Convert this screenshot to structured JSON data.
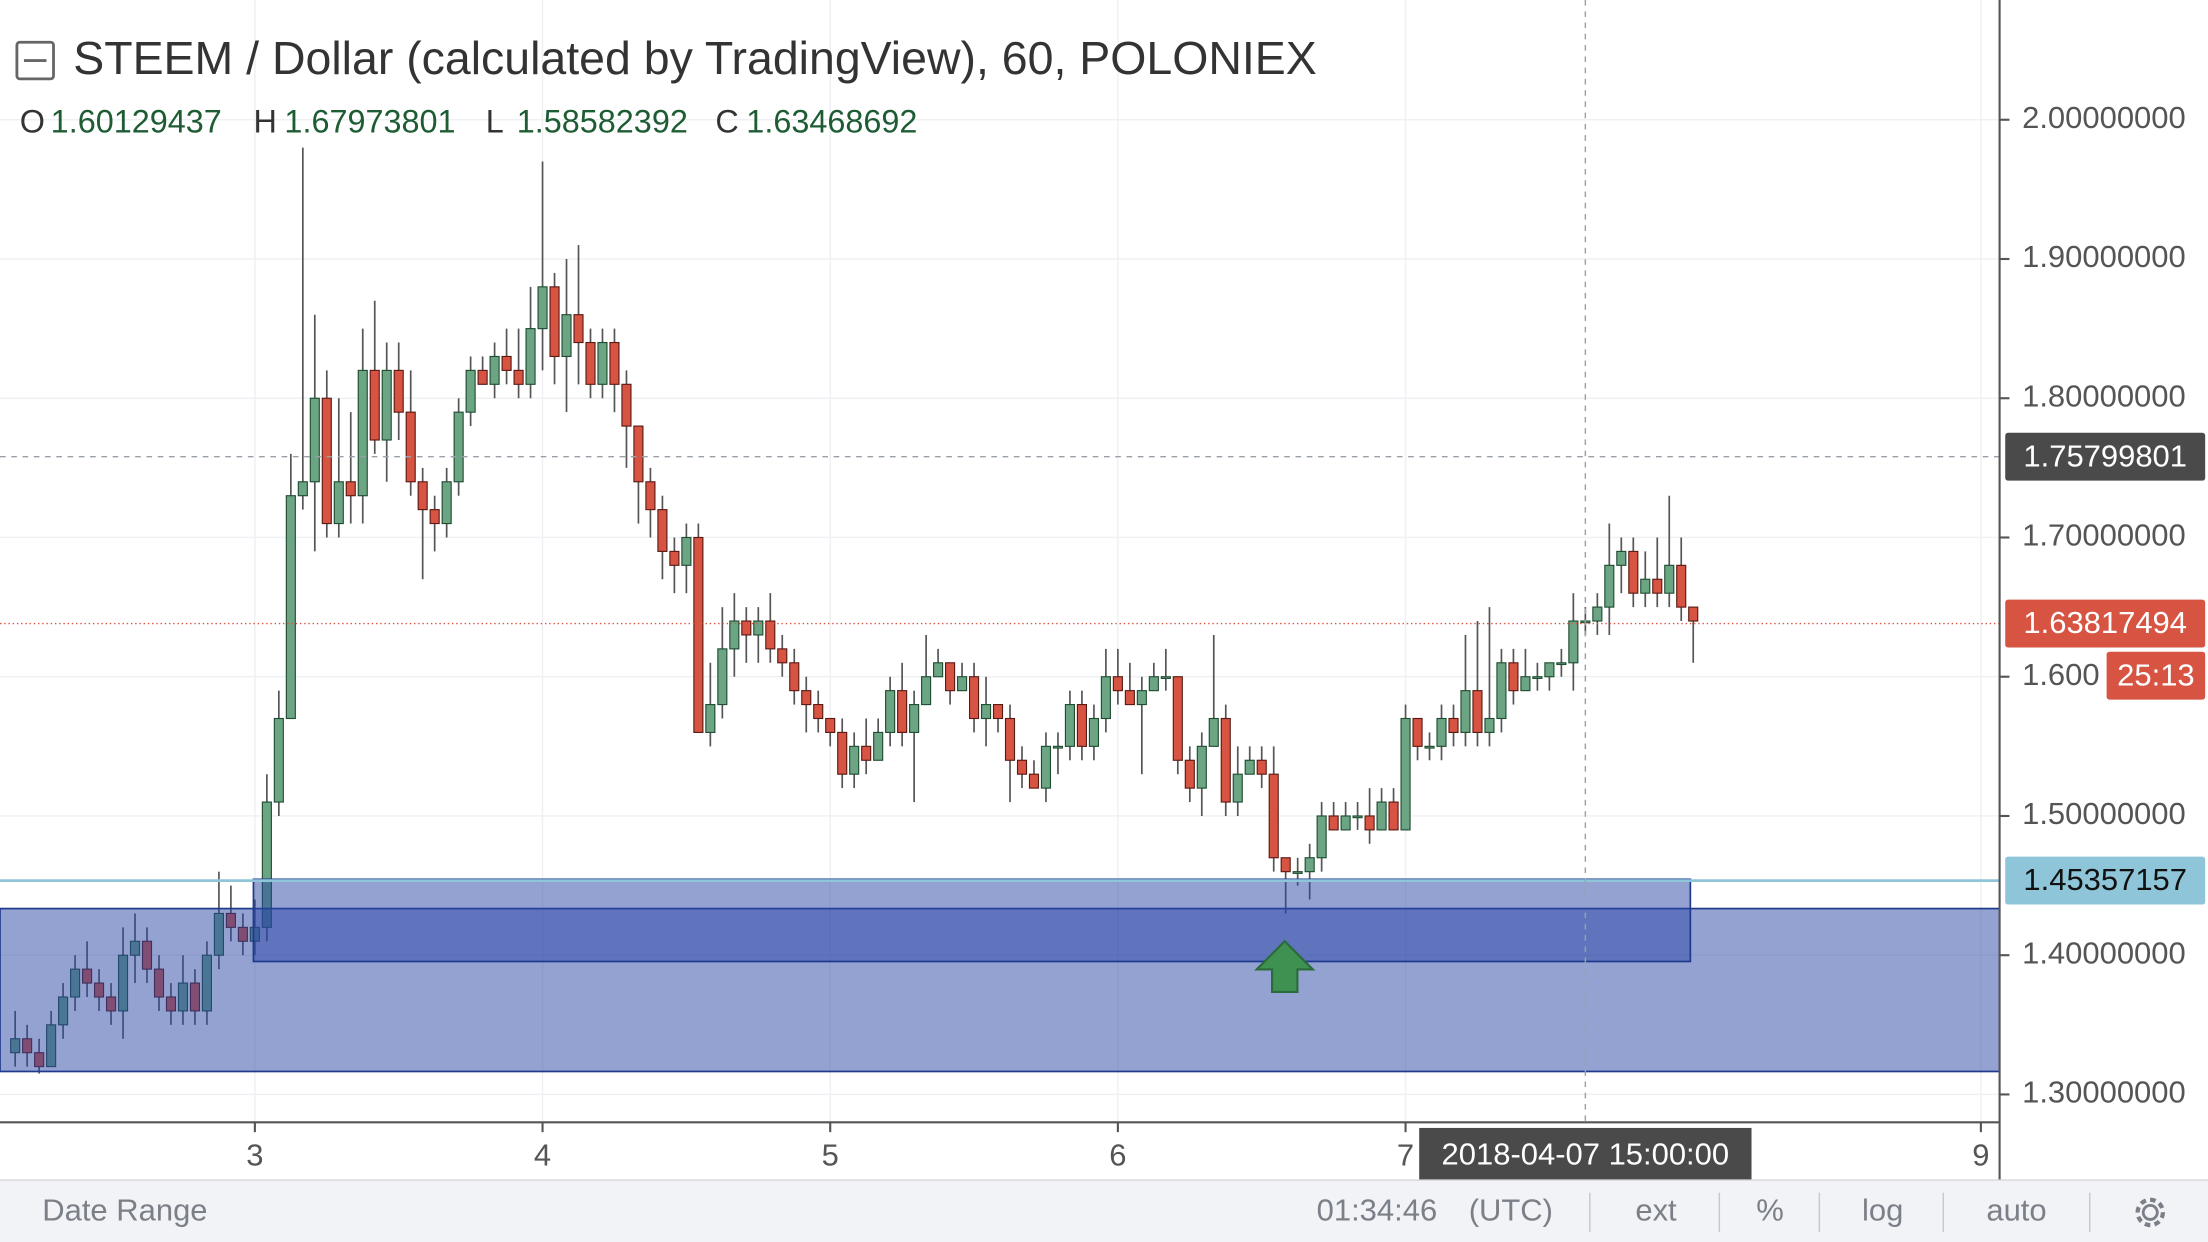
{
  "chart_data": {
    "type": "candlestick",
    "title": "STEEM / Dollar (calculated by TradingView), 60, POLONIEX",
    "ohlc_legend": [
      {
        "label": "O",
        "value": 1.60129437
      },
      {
        "label": "H",
        "value": 1.67973801
      },
      {
        "label": "L",
        "value": 1.58582392
      },
      {
        "label": "C",
        "value": 1.63468692
      }
    ],
    "up_color": "#6ba583",
    "down_color": "#d75442",
    "xlim": [
      2.114,
      9.065
    ],
    "xticks": [
      3,
      4,
      5,
      6,
      7,
      9
    ],
    "ylim": [
      1.28,
      2.086
    ],
    "yticks": [
      {
        "value": 2.0,
        "label": "2.00000000"
      },
      {
        "value": 1.9,
        "label": "1.90000000"
      },
      {
        "value": 1.8,
        "label": "1.80000000"
      },
      {
        "value": 1.7,
        "label": "1.70000000"
      },
      {
        "value": 1.6,
        "label": "1.600"
      },
      {
        "value": 1.5,
        "label": "1.50000000"
      },
      {
        "value": 1.4,
        "label": "1.40000000"
      },
      {
        "value": 1.3,
        "label": "1.30000000"
      }
    ],
    "grid": true,
    "x": [
      2.1667,
      2.2083,
      2.25,
      2.2917,
      2.3333,
      2.375,
      2.4167,
      2.4583,
      2.5,
      2.5417,
      2.5833,
      2.625,
      2.6667,
      2.7083,
      2.75,
      2.7917,
      2.8333,
      2.875,
      2.9167,
      2.9583,
      3,
      3.0417,
      3.0833,
      3.125,
      3.1667,
      3.2083,
      3.25,
      3.2917,
      3.3333,
      3.375,
      3.4167,
      3.4583,
      3.5,
      3.5417,
      3.5833,
      3.625,
      3.6667,
      3.7083,
      3.75,
      3.7917,
      3.8333,
      3.875,
      3.9167,
      3.9583,
      4,
      4.0417,
      4.0833,
      4.125,
      4.1667,
      4.2083,
      4.25,
      4.2917,
      4.3333,
      4.375,
      4.4167,
      4.4583,
      4.5,
      4.5417,
      4.5833,
      4.625,
      4.6667,
      4.7083,
      4.75,
      4.7917,
      4.8333,
      4.875,
      4.9167,
      4.9583,
      5,
      5.0417,
      5.0833,
      5.125,
      5.1667,
      5.2083,
      5.25,
      5.2917,
      5.3333,
      5.375,
      5.4167,
      5.4583,
      5.5,
      5.5417,
      5.5833,
      5.625,
      5.6667,
      5.7083,
      5.75,
      5.7917,
      5.8333,
      5.875,
      5.9167,
      5.9583,
      6,
      6.0417,
      6.0833,
      6.125,
      6.1667,
      6.2083,
      6.25,
      6.2917,
      6.3333,
      6.375,
      6.4167,
      6.4583,
      6.5,
      6.5417,
      6.5833,
      6.625,
      6.6667,
      6.7083,
      6.75,
      6.7917,
      6.8333,
      6.875,
      6.9167,
      6.9583,
      7,
      7.0417,
      7.0833,
      7.125,
      7.1667,
      7.2083,
      7.25,
      7.2917,
      7.3333,
      7.375,
      7.4167,
      7.4583,
      7.5,
      7.5417,
      7.5833,
      7.625,
      7.6667,
      7.7083,
      7.75,
      7.7917,
      7.8333,
      7.875,
      7.9167,
      7.9583,
      8
    ],
    "ohlc": [
      [
        1.33,
        1.36,
        1.32,
        1.34
      ],
      [
        1.34,
        1.35,
        1.32,
        1.33
      ],
      [
        1.33,
        1.34,
        1.315,
        1.32
      ],
      [
        1.32,
        1.36,
        1.32,
        1.35
      ],
      [
        1.35,
        1.38,
        1.34,
        1.37
      ],
      [
        1.37,
        1.4,
        1.36,
        1.39
      ],
      [
        1.39,
        1.41,
        1.37,
        1.38
      ],
      [
        1.38,
        1.39,
        1.36,
        1.37
      ],
      [
        1.37,
        1.38,
        1.35,
        1.36
      ],
      [
        1.36,
        1.42,
        1.34,
        1.4
      ],
      [
        1.4,
        1.43,
        1.38,
        1.41
      ],
      [
        1.41,
        1.42,
        1.38,
        1.39
      ],
      [
        1.39,
        1.4,
        1.36,
        1.37
      ],
      [
        1.37,
        1.38,
        1.35,
        1.36
      ],
      [
        1.36,
        1.4,
        1.35,
        1.38
      ],
      [
        1.38,
        1.39,
        1.35,
        1.36
      ],
      [
        1.36,
        1.41,
        1.35,
        1.4
      ],
      [
        1.4,
        1.46,
        1.39,
        1.43
      ],
      [
        1.43,
        1.45,
        1.41,
        1.42
      ],
      [
        1.42,
        1.43,
        1.4,
        1.41
      ],
      [
        1.41,
        1.44,
        1.4,
        1.42
      ],
      [
        1.42,
        1.53,
        1.41,
        1.51
      ],
      [
        1.51,
        1.59,
        1.5,
        1.57
      ],
      [
        1.57,
        1.76,
        1.57,
        1.73
      ],
      [
        1.73,
        1.98,
        1.72,
        1.74
      ],
      [
        1.74,
        1.86,
        1.69,
        1.8
      ],
      [
        1.8,
        1.82,
        1.7,
        1.71
      ],
      [
        1.71,
        1.8,
        1.7,
        1.74
      ],
      [
        1.74,
        1.79,
        1.71,
        1.73
      ],
      [
        1.73,
        1.85,
        1.71,
        1.82
      ],
      [
        1.82,
        1.87,
        1.76,
        1.77
      ],
      [
        1.77,
        1.84,
        1.74,
        1.82
      ],
      [
        1.82,
        1.84,
        1.77,
        1.79
      ],
      [
        1.79,
        1.82,
        1.73,
        1.74
      ],
      [
        1.74,
        1.75,
        1.67,
        1.72
      ],
      [
        1.72,
        1.73,
        1.69,
        1.71
      ],
      [
        1.71,
        1.75,
        1.7,
        1.74
      ],
      [
        1.74,
        1.8,
        1.73,
        1.79
      ],
      [
        1.79,
        1.83,
        1.78,
        1.82
      ],
      [
        1.82,
        1.83,
        1.81,
        1.81
      ],
      [
        1.81,
        1.84,
        1.8,
        1.83
      ],
      [
        1.83,
        1.85,
        1.81,
        1.82
      ],
      [
        1.82,
        1.85,
        1.8,
        1.81
      ],
      [
        1.81,
        1.88,
        1.8,
        1.85
      ],
      [
        1.85,
        1.97,
        1.82,
        1.88
      ],
      [
        1.88,
        1.89,
        1.81,
        1.83
      ],
      [
        1.83,
        1.9,
        1.79,
        1.86
      ],
      [
        1.86,
        1.91,
        1.81,
        1.84
      ],
      [
        1.84,
        1.85,
        1.8,
        1.81
      ],
      [
        1.81,
        1.85,
        1.8,
        1.84
      ],
      [
        1.84,
        1.85,
        1.79,
        1.81
      ],
      [
        1.81,
        1.82,
        1.75,
        1.78
      ],
      [
        1.78,
        1.78,
        1.71,
        1.74
      ],
      [
        1.74,
        1.75,
        1.7,
        1.72
      ],
      [
        1.72,
        1.73,
        1.67,
        1.69
      ],
      [
        1.69,
        1.7,
        1.66,
        1.68
      ],
      [
        1.68,
        1.71,
        1.66,
        1.7
      ],
      [
        1.7,
        1.71,
        1.56,
        1.56
      ],
      [
        1.56,
        1.61,
        1.55,
        1.58
      ],
      [
        1.58,
        1.65,
        1.57,
        1.62
      ],
      [
        1.62,
        1.66,
        1.6,
        1.64
      ],
      [
        1.64,
        1.65,
        1.61,
        1.63
      ],
      [
        1.63,
        1.65,
        1.61,
        1.64
      ],
      [
        1.64,
        1.66,
        1.61,
        1.62
      ],
      [
        1.62,
        1.63,
        1.6,
        1.61
      ],
      [
        1.61,
        1.62,
        1.58,
        1.59
      ],
      [
        1.59,
        1.6,
        1.56,
        1.58
      ],
      [
        1.58,
        1.59,
        1.56,
        1.57
      ],
      [
        1.57,
        1.57,
        1.55,
        1.56
      ],
      [
        1.56,
        1.57,
        1.52,
        1.53
      ],
      [
        1.53,
        1.56,
        1.52,
        1.55
      ],
      [
        1.55,
        1.57,
        1.53,
        1.54
      ],
      [
        1.54,
        1.57,
        1.54,
        1.56
      ],
      [
        1.56,
        1.6,
        1.55,
        1.59
      ],
      [
        1.59,
        1.61,
        1.55,
        1.56
      ],
      [
        1.56,
        1.59,
        1.51,
        1.58
      ],
      [
        1.58,
        1.63,
        1.58,
        1.6
      ],
      [
        1.6,
        1.62,
        1.6,
        1.61
      ],
      [
        1.61,
        1.61,
        1.58,
        1.59
      ],
      [
        1.59,
        1.61,
        1.59,
        1.6
      ],
      [
        1.6,
        1.61,
        1.56,
        1.57
      ],
      [
        1.57,
        1.6,
        1.55,
        1.58
      ],
      [
        1.58,
        1.58,
        1.56,
        1.57
      ],
      [
        1.57,
        1.58,
        1.51,
        1.54
      ],
      [
        1.54,
        1.55,
        1.52,
        1.53
      ],
      [
        1.53,
        1.54,
        1.52,
        1.52
      ],
      [
        1.52,
        1.56,
        1.51,
        1.55
      ],
      [
        1.55,
        1.56,
        1.53,
        1.55
      ],
      [
        1.55,
        1.59,
        1.54,
        1.58
      ],
      [
        1.58,
        1.59,
        1.54,
        1.55
      ],
      [
        1.55,
        1.58,
        1.54,
        1.57
      ],
      [
        1.57,
        1.62,
        1.56,
        1.6
      ],
      [
        1.6,
        1.62,
        1.58,
        1.59
      ],
      [
        1.59,
        1.61,
        1.58,
        1.58
      ],
      [
        1.58,
        1.6,
        1.53,
        1.59
      ],
      [
        1.59,
        1.61,
        1.59,
        1.6
      ],
      [
        1.6,
        1.62,
        1.59,
        1.6
      ],
      [
        1.6,
        1.6,
        1.53,
        1.54
      ],
      [
        1.54,
        1.55,
        1.51,
        1.52
      ],
      [
        1.52,
        1.56,
        1.5,
        1.55
      ],
      [
        1.55,
        1.63,
        1.55,
        1.57
      ],
      [
        1.57,
        1.58,
        1.5,
        1.51
      ],
      [
        1.51,
        1.55,
        1.5,
        1.53
      ],
      [
        1.53,
        1.55,
        1.53,
        1.54
      ],
      [
        1.54,
        1.55,
        1.52,
        1.53
      ],
      [
        1.53,
        1.55,
        1.46,
        1.47
      ],
      [
        1.47,
        1.47,
        1.43,
        1.46
      ],
      [
        1.46,
        1.47,
        1.45,
        1.46
      ],
      [
        1.46,
        1.48,
        1.44,
        1.47
      ],
      [
        1.47,
        1.51,
        1.46,
        1.5
      ],
      [
        1.5,
        1.51,
        1.49,
        1.49
      ],
      [
        1.49,
        1.51,
        1.49,
        1.5
      ],
      [
        1.5,
        1.51,
        1.49,
        1.5
      ],
      [
        1.5,
        1.52,
        1.48,
        1.49
      ],
      [
        1.49,
        1.52,
        1.49,
        1.51
      ],
      [
        1.51,
        1.52,
        1.49,
        1.49
      ],
      [
        1.49,
        1.58,
        1.49,
        1.57
      ],
      [
        1.57,
        1.57,
        1.54,
        1.55
      ],
      [
        1.55,
        1.56,
        1.54,
        1.55
      ],
      [
        1.55,
        1.58,
        1.54,
        1.57
      ],
      [
        1.57,
        1.58,
        1.55,
        1.56
      ],
      [
        1.56,
        1.63,
        1.55,
        1.59
      ],
      [
        1.59,
        1.64,
        1.55,
        1.56
      ],
      [
        1.56,
        1.65,
        1.55,
        1.57
      ],
      [
        1.57,
        1.62,
        1.56,
        1.61
      ],
      [
        1.61,
        1.62,
        1.58,
        1.59
      ],
      [
        1.59,
        1.62,
        1.59,
        1.6
      ],
      [
        1.6,
        1.61,
        1.59,
        1.6
      ],
      [
        1.6,
        1.61,
        1.59,
        1.61
      ],
      [
        1.61,
        1.62,
        1.6,
        1.61
      ],
      [
        1.61,
        1.66,
        1.59,
        1.64
      ],
      [
        1.64,
        1.65,
        1.63,
        1.64
      ],
      [
        1.64,
        1.66,
        1.63,
        1.65
      ],
      [
        1.65,
        1.71,
        1.63,
        1.68
      ],
      [
        1.68,
        1.7,
        1.66,
        1.69
      ],
      [
        1.69,
        1.7,
        1.65,
        1.66
      ],
      [
        1.66,
        1.69,
        1.65,
        1.67
      ],
      [
        1.67,
        1.7,
        1.65,
        1.66
      ],
      [
        1.66,
        1.73,
        1.65,
        1.68
      ],
      [
        1.68,
        1.7,
        1.64,
        1.65
      ],
      [
        1.65,
        1.65,
        1.61,
        1.64
      ]
    ],
    "last_price": 1.63817494,
    "last_price_color": "#d75442",
    "countdown": "25:13",
    "crosshair": {
      "x": 7.625,
      "x_label": "2018-04-07 15:00:00",
      "y": 1.75799801
    },
    "horizontal_line": {
      "y": 1.45357157,
      "color": "#8ec5d8"
    },
    "zones": [
      {
        "x0": 2.114,
        "x1": 9.065,
        "y0": 1.3165,
        "y1": 1.4335
      },
      {
        "x0": 2.995,
        "x1": 7.99,
        "y0": 1.3955,
        "y1": 1.4545
      }
    ],
    "zone_color": "#2a46a6",
    "arrow": {
      "x": 6.58,
      "y": 1.41,
      "color": "#3f9152"
    }
  },
  "status_bar": {
    "date_range": "Date Range",
    "time": "01:34:46",
    "timezone": "(UTC)",
    "buttons": [
      "ext",
      "%",
      "log",
      "auto"
    ]
  }
}
